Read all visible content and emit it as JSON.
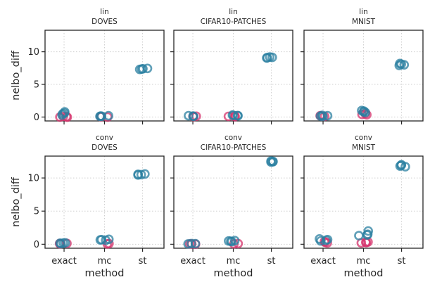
{
  "chart_data": [
    {
      "type": "scatter",
      "title": "lin",
      "subtitle": "DOVES",
      "xlabel": "",
      "ylabel": "nelbo_diff",
      "categories": [
        "exact",
        "mc",
        "st"
      ],
      "ylim": [
        -0.6,
        13.3
      ],
      "yticks": [
        0,
        5,
        10
      ],
      "grid": true,
      "series": [
        {
          "color": "#d6336c",
          "points": [
            {
              "x": "exact",
              "y": 0.05
            },
            {
              "x": "exact",
              "y": 0.0
            },
            {
              "x": "exact",
              "y": 0.1
            },
            {
              "x": "exact",
              "y": -0.02
            },
            {
              "x": "mc",
              "y": 0.05
            },
            {
              "x": "mc",
              "y": 0.0
            },
            {
              "x": "mc",
              "y": 0.08
            }
          ]
        },
        {
          "color": "#2a7fa0",
          "points": [
            {
              "x": "exact",
              "y": 0.8
            },
            {
              "x": "exact",
              "y": 0.5
            },
            {
              "x": "exact",
              "y": 0.3
            },
            {
              "x": "exact",
              "y": 0.6
            },
            {
              "x": "mc",
              "y": 0.15
            },
            {
              "x": "mc",
              "y": 0.1
            },
            {
              "x": "mc",
              "y": 0.2
            },
            {
              "x": "mc",
              "y": 0.12
            },
            {
              "x": "st",
              "y": 7.35
            },
            {
              "x": "st",
              "y": 7.45
            },
            {
              "x": "st",
              "y": 7.3
            },
            {
              "x": "st",
              "y": 7.4
            }
          ]
        }
      ]
    },
    {
      "type": "scatter",
      "title": "lin",
      "subtitle": "CIFAR10-PATCHES",
      "xlabel": "",
      "ylabel": "",
      "categories": [
        "exact",
        "mc",
        "st"
      ],
      "ylim": [
        -0.6,
        13.3
      ],
      "yticks": [
        0,
        5,
        10
      ],
      "grid": true,
      "series": [
        {
          "color": "#d6336c",
          "points": [
            {
              "x": "exact",
              "y": 0.1
            },
            {
              "x": "exact",
              "y": 0.05
            },
            {
              "x": "exact",
              "y": 0.12
            },
            {
              "x": "mc",
              "y": 0.1
            },
            {
              "x": "mc",
              "y": 0.05
            },
            {
              "x": "mc",
              "y": 0.15
            }
          ]
        },
        {
          "color": "#2a7fa0",
          "points": [
            {
              "x": "exact",
              "y": 0.15
            },
            {
              "x": "exact",
              "y": 0.1
            },
            {
              "x": "exact",
              "y": 0.2
            },
            {
              "x": "mc",
              "y": 0.25
            },
            {
              "x": "mc",
              "y": 0.2
            },
            {
              "x": "mc",
              "y": 0.3
            },
            {
              "x": "mc",
              "y": 0.22
            },
            {
              "x": "st",
              "y": 9.1
            },
            {
              "x": "st",
              "y": 9.2
            },
            {
              "x": "st",
              "y": 9.05
            },
            {
              "x": "st",
              "y": 9.15
            }
          ]
        }
      ]
    },
    {
      "type": "scatter",
      "title": "lin",
      "subtitle": "MNIST",
      "xlabel": "",
      "ylabel": "",
      "categories": [
        "exact",
        "mc",
        "st"
      ],
      "ylim": [
        -0.6,
        13.3
      ],
      "yticks": [
        0,
        5,
        10
      ],
      "grid": true,
      "series": [
        {
          "color": "#d6336c",
          "points": [
            {
              "x": "exact",
              "y": 0.15
            },
            {
              "x": "exact",
              "y": 0.1
            },
            {
              "x": "exact",
              "y": 0.2
            },
            {
              "x": "mc",
              "y": 0.4
            },
            {
              "x": "mc",
              "y": 0.5
            },
            {
              "x": "mc",
              "y": 0.35
            }
          ]
        },
        {
          "color": "#2a7fa0",
          "points": [
            {
              "x": "exact",
              "y": 0.25
            },
            {
              "x": "exact",
              "y": 0.2
            },
            {
              "x": "exact",
              "y": 0.1
            },
            {
              "x": "exact",
              "y": 0.15
            },
            {
              "x": "mc",
              "y": 0.9
            },
            {
              "x": "mc",
              "y": 1.0
            },
            {
              "x": "mc",
              "y": 0.7
            },
            {
              "x": "mc",
              "y": 0.8
            },
            {
              "x": "st",
              "y": 8.2
            },
            {
              "x": "st",
              "y": 8.0
            },
            {
              "x": "st",
              "y": 8.1
            },
            {
              "x": "st",
              "y": 7.9
            }
          ]
        }
      ]
    },
    {
      "type": "scatter",
      "title": "conv",
      "subtitle": "DOVES",
      "xlabel": "method",
      "ylabel": "nelbo_diff",
      "categories": [
        "exact",
        "mc",
        "st"
      ],
      "ylim": [
        -0.6,
        13.3
      ],
      "yticks": [
        0,
        5,
        10
      ],
      "grid": true,
      "series": [
        {
          "color": "#d6336c",
          "points": [
            {
              "x": "exact",
              "y": 0.1
            },
            {
              "x": "exact",
              "y": 0.05
            },
            {
              "x": "exact",
              "y": 0.12
            },
            {
              "x": "mc",
              "y": 0.1
            },
            {
              "x": "mc",
              "y": 0.05
            }
          ]
        },
        {
          "color": "#2a7fa0",
          "points": [
            {
              "x": "exact",
              "y": 0.2
            },
            {
              "x": "exact",
              "y": 0.15
            },
            {
              "x": "exact",
              "y": 0.1
            },
            {
              "x": "exact",
              "y": 0.18
            },
            {
              "x": "mc",
              "y": 0.6
            },
            {
              "x": "mc",
              "y": 0.7
            },
            {
              "x": "mc",
              "y": 0.65
            },
            {
              "x": "mc",
              "y": 0.75
            },
            {
              "x": "st",
              "y": 10.6
            },
            {
              "x": "st",
              "y": 10.5
            },
            {
              "x": "st",
              "y": 10.55
            },
            {
              "x": "st",
              "y": 10.45
            }
          ]
        }
      ]
    },
    {
      "type": "scatter",
      "title": "conv",
      "subtitle": "CIFAR10-PATCHES",
      "xlabel": "method",
      "ylabel": "",
      "categories": [
        "exact",
        "mc",
        "st"
      ],
      "ylim": [
        -0.6,
        13.3
      ],
      "yticks": [
        0,
        5,
        10
      ],
      "grid": true,
      "series": [
        {
          "color": "#d6336c",
          "points": [
            {
              "x": "exact",
              "y": 0.05
            },
            {
              "x": "exact",
              "y": 0.02
            },
            {
              "x": "exact",
              "y": 0.04
            },
            {
              "x": "mc",
              "y": 0.05
            },
            {
              "x": "mc",
              "y": 0.1
            }
          ]
        },
        {
          "color": "#2a7fa0",
          "points": [
            {
              "x": "exact",
              "y": 0.1
            },
            {
              "x": "exact",
              "y": 0.05
            },
            {
              "x": "exact",
              "y": 0.08
            },
            {
              "x": "mc",
              "y": 0.45
            },
            {
              "x": "mc",
              "y": 0.55
            },
            {
              "x": "mc",
              "y": 0.4
            },
            {
              "x": "mc",
              "y": 0.5
            },
            {
              "x": "st",
              "y": 12.5
            },
            {
              "x": "st",
              "y": 12.4
            },
            {
              "x": "st",
              "y": 12.45
            },
            {
              "x": "st",
              "y": 12.55
            }
          ]
        }
      ]
    },
    {
      "type": "scatter",
      "title": "conv",
      "subtitle": "MNIST",
      "xlabel": "method",
      "ylabel": "",
      "categories": [
        "exact",
        "mc",
        "st"
      ],
      "ylim": [
        -0.6,
        13.3
      ],
      "yticks": [
        0,
        5,
        10
      ],
      "grid": true,
      "series": [
        {
          "color": "#d6336c",
          "points": [
            {
              "x": "exact",
              "y": 0.4
            },
            {
              "x": "exact",
              "y": 0.3
            },
            {
              "x": "exact",
              "y": 0.2
            },
            {
              "x": "mc",
              "y": 0.3
            },
            {
              "x": "mc",
              "y": 0.25
            },
            {
              "x": "mc",
              "y": 0.35
            },
            {
              "x": "mc",
              "y": 0.2
            }
          ]
        },
        {
          "color": "#2a7fa0",
          "points": [
            {
              "x": "exact",
              "y": 0.7
            },
            {
              "x": "exact",
              "y": 0.6
            },
            {
              "x": "exact",
              "y": 0.8
            },
            {
              "x": "exact",
              "y": 0.5
            },
            {
              "x": "mc",
              "y": 1.4
            },
            {
              "x": "mc",
              "y": 2.0
            },
            {
              "x": "mc",
              "y": 1.5
            },
            {
              "x": "mc",
              "y": 1.3
            },
            {
              "x": "st",
              "y": 11.8
            },
            {
              "x": "st",
              "y": 12.0
            },
            {
              "x": "st",
              "y": 11.7
            },
            {
              "x": "st",
              "y": 11.9
            }
          ]
        }
      ]
    }
  ]
}
